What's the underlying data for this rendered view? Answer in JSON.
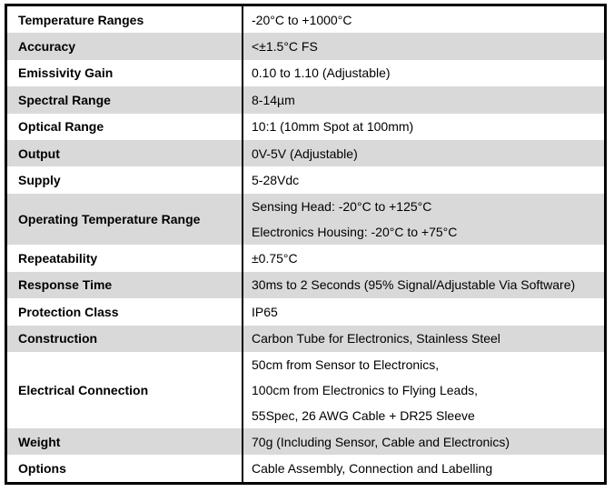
{
  "table": {
    "colors": {
      "alt_row_background": "#d9d9d9",
      "default_row_background": "#ffffff",
      "border": "#000000",
      "text": "#000000"
    },
    "rows": [
      {
        "label": "Temperature Ranges",
        "value_lines": [
          "-20°C to +1000°C"
        ]
      },
      {
        "label": "Accuracy",
        "value_lines": [
          "<±1.5°C FS"
        ]
      },
      {
        "label": "Emissivity Gain",
        "value_lines": [
          "0.10 to 1.10 (Adjustable)"
        ]
      },
      {
        "label": "Spectral Range",
        "value_lines": [
          "8-14µm"
        ]
      },
      {
        "label": "Optical Range",
        "value_lines": [
          "10:1 (10mm Spot at 100mm)"
        ]
      },
      {
        "label": "Output",
        "value_lines": [
          "0V-5V (Adjustable)"
        ]
      },
      {
        "label": "Supply",
        "value_lines": [
          "5-28Vdc"
        ]
      },
      {
        "label": "Operating Temperature Range",
        "value_lines": [
          "Sensing Head: -20°C to +125°C",
          "Electronics Housing: -20°C to +75°C"
        ]
      },
      {
        "label": "Repeatability",
        "value_lines": [
          "±0.75°C"
        ]
      },
      {
        "label": "Response Time",
        "value_lines": [
          "30ms to 2 Seconds (95% Signal/Adjustable Via Software)"
        ]
      },
      {
        "label": "Protection Class",
        "value_lines": [
          "IP65"
        ]
      },
      {
        "label": "Construction",
        "value_lines": [
          "Carbon Tube for Electronics, Stainless Steel"
        ]
      },
      {
        "label": "Electrical Connection",
        "value_lines": [
          "50cm from Sensor to Electronics,",
          "100cm from Electronics to Flying Leads,",
          "55Spec, 26 AWG Cable + DR25 Sleeve"
        ]
      },
      {
        "label": "Weight",
        "value_lines": [
          "70g (Including Sensor, Cable and Electronics)"
        ]
      },
      {
        "label": "Options",
        "value_lines": [
          "Cable Assembly, Connection and Labelling"
        ]
      }
    ]
  }
}
